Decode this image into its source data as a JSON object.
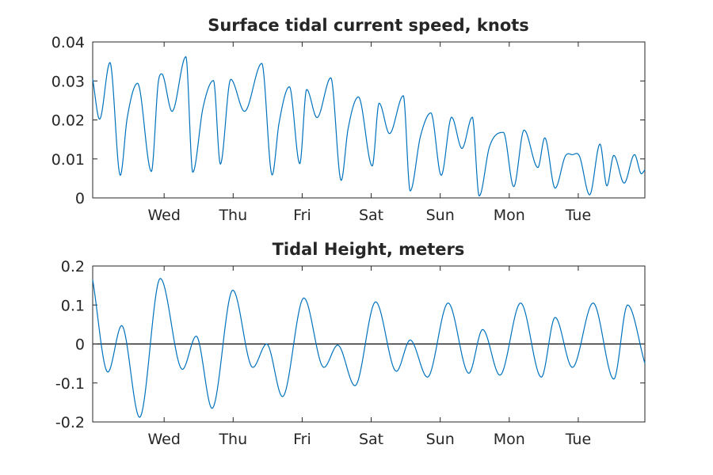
{
  "chart_data": [
    {
      "type": "line",
      "title": "Surface tidal current speed, knots",
      "xlabel": "",
      "ylabel": "",
      "x_tick_labels": [
        "Wed",
        "Thu",
        "Fri",
        "Sat",
        "Sun",
        "Mon",
        "Tue"
      ],
      "y_ticks": [
        0,
        0.01,
        0.02,
        0.03,
        0.04
      ],
      "y_tick_labels": [
        "0",
        "0.01",
        "0.02",
        "0.03",
        "0.04"
      ],
      "ylim": [
        0,
        0.04
      ],
      "xlim_days": [
        0,
        8
      ],
      "grid": false,
      "color": "#0072bd",
      "series": [
        {
          "x_days": [
            0.0,
            0.1,
            0.25,
            0.4,
            0.5,
            0.65,
            0.85,
            0.95,
            1.0,
            1.15,
            1.35,
            1.45,
            1.6,
            1.75,
            1.85,
            2.0,
            2.2,
            2.45,
            2.6,
            2.7,
            2.85,
            3.0,
            3.1,
            3.25,
            3.45,
            3.6,
            3.7,
            3.85,
            4.05,
            4.15,
            4.3,
            4.5,
            4.6,
            4.75,
            4.9,
            5.05,
            5.2,
            5.35,
            5.5,
            5.6,
            5.75,
            5.95,
            6.1,
            6.25,
            6.45,
            6.55,
            6.7,
            6.85,
            6.95,
            7.05,
            7.2,
            7.35,
            7.45,
            7.55,
            7.7,
            7.85,
            7.95,
            8.0
          ],
          "values": [
            0.0305,
            0.0202,
            0.0347,
            0.0058,
            0.0205,
            0.0294,
            0.0068,
            0.0296,
            0.0318,
            0.0222,
            0.0362,
            0.0066,
            0.0233,
            0.0301,
            0.0087,
            0.0304,
            0.0222,
            0.0345,
            0.0059,
            0.0192,
            0.0285,
            0.0088,
            0.0278,
            0.0206,
            0.0308,
            0.0045,
            0.0177,
            0.0259,
            0.0082,
            0.0243,
            0.0165,
            0.0262,
            0.0018,
            0.0159,
            0.0218,
            0.0058,
            0.0207,
            0.0127,
            0.0207,
            0.0005,
            0.0132,
            0.0168,
            0.0029,
            0.0174,
            0.0078,
            0.0154,
            0.0025,
            0.0108,
            0.0111,
            0.0108,
            0.0008,
            0.0138,
            0.0031,
            0.0109,
            0.0038,
            0.0111,
            0.0062,
            0.0072
          ]
        }
      ]
    },
    {
      "type": "line",
      "title": "Tidal Height, meters",
      "xlabel": "",
      "ylabel": "",
      "x_tick_labels": [
        "Wed",
        "Thu",
        "Fri",
        "Sat",
        "Sun",
        "Mon",
        "Tue"
      ],
      "y_ticks": [
        -0.2,
        -0.1,
        0,
        0.1,
        0.2
      ],
      "y_tick_labels": [
        "-0.2",
        "-0.1",
        "0",
        "0.1",
        "0.2"
      ],
      "ylim": [
        -0.2,
        0.2
      ],
      "xlim_days": [
        0,
        8
      ],
      "grid": false,
      "reference_line_y": 0,
      "color": "#0072bd",
      "series": [
        {
          "x_days": [
            0.0,
            0.22,
            0.42,
            0.68,
            0.98,
            1.3,
            1.5,
            1.73,
            2.03,
            2.32,
            2.52,
            2.75,
            3.06,
            3.35,
            3.55,
            3.8,
            4.1,
            4.4,
            4.6,
            4.85,
            5.15,
            5.45,
            5.65,
            5.9,
            6.2,
            6.5,
            6.7,
            6.95,
            7.25,
            7.55,
            7.75,
            8.0
          ],
          "values": [
            0.165,
            -0.072,
            0.047,
            -0.188,
            0.168,
            -0.065,
            0.02,
            -0.165,
            0.138,
            -0.06,
            0.0,
            -0.135,
            0.118,
            -0.06,
            -0.003,
            -0.107,
            0.108,
            -0.07,
            0.01,
            -0.085,
            0.105,
            -0.075,
            0.037,
            -0.08,
            0.105,
            -0.085,
            0.068,
            -0.06,
            0.105,
            -0.09,
            0.1,
            -0.05
          ]
        }
      ]
    }
  ]
}
